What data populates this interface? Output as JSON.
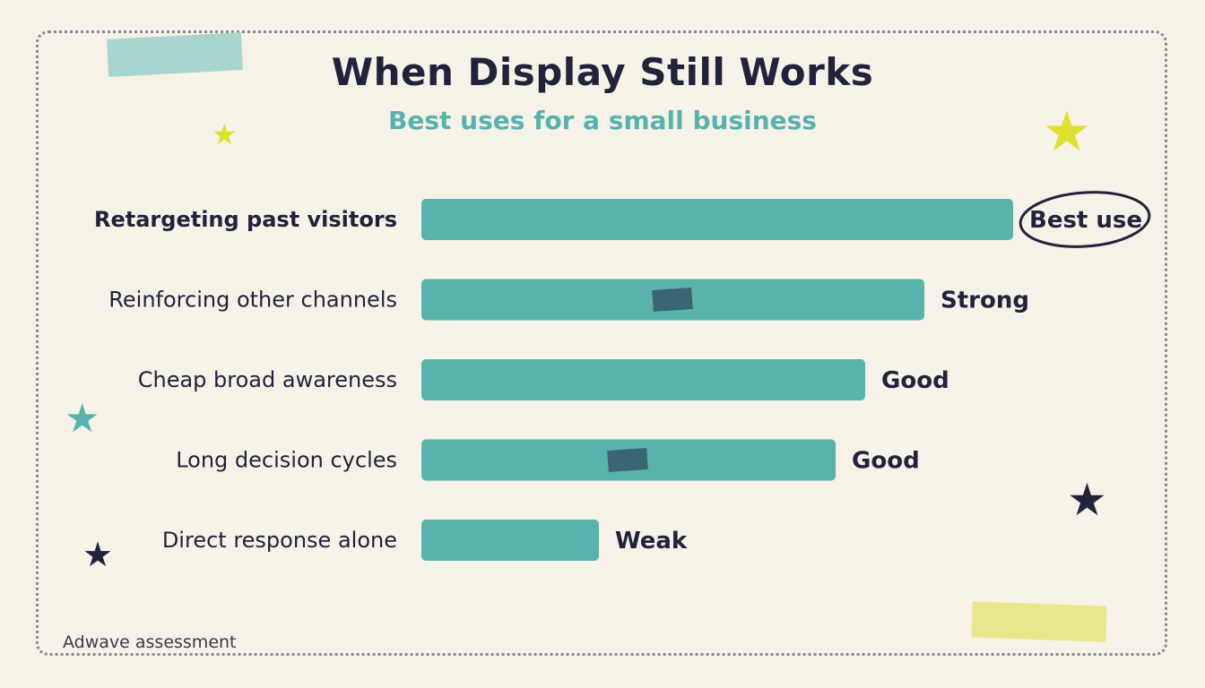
{
  "title": "When Display Still Works",
  "subtitle": "Best uses for a small business",
  "footer": "Adwave assessment",
  "colors": {
    "background": "#f6f2e7",
    "bar": "#57b3ab",
    "bar_patch": "#3b6570",
    "text": "#22223b",
    "accent_teal": "#57b3ab",
    "accent_yellow": "#dfe22d",
    "accent_navy": "#22223b"
  },
  "decorations": {
    "star_icon": "star-icon",
    "circle_highlight": "highlight-circle"
  },
  "chart_data": {
    "type": "bar",
    "orientation": "horizontal",
    "categories": [
      "Retargeting past visitors",
      "Reinforcing other channels",
      "Cheap broad awareness",
      "Long decision cycles",
      "Direct response alone"
    ],
    "values": [
      100,
      85,
      75,
      70,
      30
    ],
    "value_labels": [
      "Best use",
      "Strong",
      "Good",
      "Good",
      "Weak"
    ],
    "xlim": [
      0,
      100
    ],
    "grid": false,
    "legend": "none",
    "title": "When Display Still Works",
    "subtitle": "Best uses for a small business",
    "xlabel": "",
    "ylabel": ""
  }
}
